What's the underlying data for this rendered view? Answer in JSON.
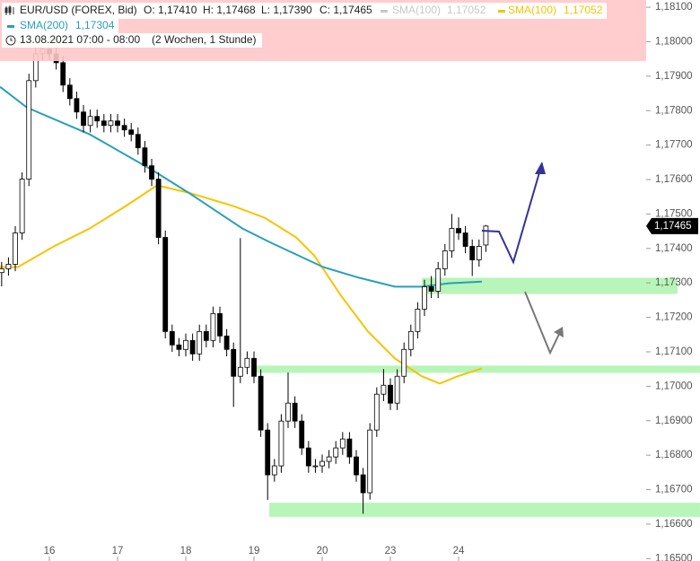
{
  "chart_data": {
    "type": "candlestick",
    "header": {
      "symbol": "EUR/USD (FOREX, Bid)",
      "ohlc": [
        "O: 1,17410",
        "H: 1,17468",
        "L: 1,17390",
        "C: 1,17465"
      ],
      "inactive_indicator": {
        "name": "SMA(100)",
        "value": "1,17052",
        "color": "#c8c8c8"
      },
      "date": "13.08.2021 07:00 - 08:00",
      "range": "(2 Wochen, 1 Stunde)"
    },
    "up_color": "#ffffff",
    "down_color": "#000000",
    "x": [
      -0.7,
      -0.6,
      -0.5,
      -0.4,
      -0.3,
      -0.2,
      -0.1,
      0,
      0.1,
      0.2,
      0.3,
      0.4,
      0.5,
      0.6,
      0.7,
      0.8,
      0.9,
      1,
      1.1,
      1.2,
      1.3,
      1.4,
      1.5,
      1.6,
      1.7,
      1.8,
      1.9,
      2,
      2.1,
      2.2,
      2.3,
      2.4,
      2.5,
      2.6,
      2.7,
      2.8,
      2.9,
      3,
      3.1,
      3.2,
      3.3,
      3.4,
      3.5,
      3.6,
      3.7,
      3.8,
      3.9,
      4,
      4.1,
      4.2,
      4.3,
      4.4,
      4.5,
      4.6,
      4.7,
      4.8,
      4.9,
      5,
      5.1,
      5.2,
      5.3,
      5.4,
      5.5,
      5.6,
      5.7,
      5.8,
      5.9,
      6,
      6.1,
      6.2,
      6.3,
      6.4
    ],
    "open": [
      1.1733,
      1.17341,
      1.17354,
      1.17445,
      1.17601,
      1.17887,
      1.17965,
      1.17978,
      1.17965,
      1.17939,
      1.17874,
      1.17835,
      1.17796,
      1.17757,
      1.17783,
      1.1777,
      1.17757,
      1.1777,
      1.17757,
      1.17744,
      1.17731,
      1.17692,
      1.1764,
      1.17601,
      1.17432,
      1.17159,
      1.1712,
      1.17107,
      1.17133,
      1.17094,
      1.17159,
      1.17133,
      1.17211,
      1.17146,
      1.17107,
      1.17029,
      1.17055,
      1.17081,
      1.17029,
      1.16873,
      1.16743,
      1.16769,
      1.16899,
      1.16951,
      1.16899,
      1.16821,
      1.16769,
      1.16769,
      1.16782,
      1.16795,
      1.16821,
      1.16847,
      1.16795,
      1.16743,
      1.16691,
      1.16873,
      1.16977,
      1.17003,
      1.16951,
      1.17029,
      1.17107,
      1.17159,
      1.17224,
      1.17289,
      1.17276,
      1.17341,
      1.17393,
      1.17458,
      1.17445,
      1.17406,
      1.17367,
      1.1741
    ],
    "high": [
      1.17361,
      1.17374,
      1.17465,
      1.17621,
      1.17907,
      1.17985,
      1.1801,
      1.17998,
      1.17985,
      1.17959,
      1.17894,
      1.17855,
      1.17816,
      1.17803,
      1.17803,
      1.1779,
      1.1779,
      1.1779,
      1.17777,
      1.17764,
      1.17751,
      1.17712,
      1.1766,
      1.17621,
      1.17452,
      1.17179,
      1.1714,
      1.17153,
      1.17153,
      1.17179,
      1.17179,
      1.17231,
      1.17231,
      1.17166,
      1.17127,
      1.1743,
      1.17101,
      1.17101,
      1.17049,
      1.16893,
      1.16789,
      1.16919,
      1.1704,
      1.16971,
      1.16919,
      1.16841,
      1.16789,
      1.16802,
      1.16815,
      1.16841,
      1.16867,
      1.16867,
      1.16815,
      1.16763,
      1.16893,
      1.16997,
      1.1705,
      1.17023,
      1.17049,
      1.17127,
      1.17179,
      1.17244,
      1.17309,
      1.1732,
      1.17361,
      1.17413,
      1.175,
      1.1749,
      1.17465,
      1.17426,
      1.17426,
      1.17468
    ],
    "low": [
      1.1729,
      1.17321,
      1.17334,
      1.17425,
      1.17581,
      1.17867,
      1.17945,
      1.17945,
      1.17919,
      1.17854,
      1.17815,
      1.17776,
      1.17737,
      1.17737,
      1.1775,
      1.17737,
      1.17737,
      1.17737,
      1.17724,
      1.17711,
      1.17672,
      1.1762,
      1.17581,
      1.17412,
      1.17139,
      1.171,
      1.17087,
      1.17087,
      1.17074,
      1.17074,
      1.17113,
      1.17113,
      1.17126,
      1.17087,
      1.1694,
      1.17009,
      1.17035,
      1.17009,
      1.16853,
      1.1667,
      1.16723,
      1.16749,
      1.16879,
      1.16879,
      1.16801,
      1.16749,
      1.16749,
      1.16749,
      1.16762,
      1.16775,
      1.16801,
      1.16775,
      1.16723,
      1.1663,
      1.16671,
      1.16853,
      1.16957,
      1.16931,
      1.16931,
      1.17009,
      1.17087,
      1.17139,
      1.17204,
      1.17256,
      1.17256,
      1.17321,
      1.17373,
      1.17425,
      1.17386,
      1.1732,
      1.17347,
      1.1739
    ],
    "close": [
      1.17341,
      1.17354,
      1.17445,
      1.17601,
      1.17887,
      1.17965,
      1.17978,
      1.17965,
      1.17939,
      1.17874,
      1.17835,
      1.17796,
      1.17757,
      1.17783,
      1.1777,
      1.17757,
      1.1777,
      1.17757,
      1.17744,
      1.17731,
      1.17692,
      1.1764,
      1.17601,
      1.17432,
      1.17159,
      1.1712,
      1.17107,
      1.17133,
      1.17094,
      1.17159,
      1.17133,
      1.17211,
      1.17146,
      1.17107,
      1.17029,
      1.17055,
      1.17081,
      1.17029,
      1.16873,
      1.16743,
      1.16769,
      1.16899,
      1.16951,
      1.16899,
      1.16821,
      1.16769,
      1.16769,
      1.16782,
      1.16795,
      1.16821,
      1.16847,
      1.16795,
      1.16743,
      1.16691,
      1.16873,
      1.16977,
      1.17003,
      1.16951,
      1.17029,
      1.17107,
      1.17159,
      1.17224,
      1.17289,
      1.17276,
      1.17341,
      1.17393,
      1.17458,
      1.17445,
      1.17406,
      1.17367,
      1.17406,
      1.17465
    ],
    "series": [
      {
        "name": "SMA(100)",
        "color": "#f5c400",
        "value_label": "1,17052",
        "x": [
          -0.724,
          -0.461,
          0.066,
          0.592,
          1.118,
          1.579,
          2.039,
          2.697,
          3.158,
          3.618,
          3.882,
          4.276,
          4.671,
          5.066,
          5.461,
          5.724,
          5.987,
          6.342
        ],
        "values": [
          1.17346,
          1.17346,
          1.17406,
          1.17458,
          1.17523,
          1.17583,
          1.17562,
          1.17523,
          1.17489,
          1.17432,
          1.1738,
          1.17263,
          1.17159,
          1.17081,
          1.17029,
          1.17008,
          1.17029,
          1.17052
        ]
      },
      {
        "name": "SMA(200)",
        "color": "#2a9fb8",
        "value_label": "1,17304",
        "x": [
          -0.724,
          -0.329,
          0.592,
          1.513,
          2.039,
          2.829,
          3.224,
          4.013,
          4.539,
          5.066,
          5.461,
          5.855,
          6.342
        ],
        "values": [
          1.17869,
          1.17809,
          1.17731,
          1.17627,
          1.17562,
          1.17458,
          1.17419,
          1.17346,
          1.17315,
          1.17289,
          1.17289,
          1.17299,
          1.17304
        ]
      }
    ],
    "zones": [
      {
        "from": 1.17268,
        "to": 1.17315,
        "x_from": 5.461,
        "x_to": 9.211
      },
      {
        "from": 1.17039,
        "to": 1.1706,
        "x_from": 3.026,
        "x_to": 9.539
      },
      {
        "from": 1.16621,
        "to": 1.16662,
        "x_from": 3.224,
        "x_to": 9.539
      }
    ],
    "zone_color": "#b8f5b8",
    "last_price": {
      "value": 1.17465,
      "label": "1,17465"
    },
    "xlim": [
      -0.724,
      8.75
    ],
    "ylim": [
      1.16493,
      1.18121
    ],
    "xticks": [
      {
        "value": 0,
        "label": "16"
      },
      {
        "value": 1,
        "label": "17"
      },
      {
        "value": 2,
        "label": "18"
      },
      {
        "value": 3,
        "label": "19"
      },
      {
        "value": 4,
        "label": "20"
      },
      {
        "value": 5,
        "label": "23"
      },
      {
        "value": 6,
        "label": "24"
      }
    ],
    "yticks": [
      {
        "value": 1.181,
        "label": "1,18100"
      },
      {
        "value": 1.18,
        "label": "1,18000"
      },
      {
        "value": 1.179,
        "label": "1,17900"
      },
      {
        "value": 1.178,
        "label": "1,17800"
      },
      {
        "value": 1.177,
        "label": "1,17700"
      },
      {
        "value": 1.176,
        "label": "1,17600"
      },
      {
        "value": 1.175,
        "label": "1,17500"
      },
      {
        "value": 1.174,
        "label": "1,17400"
      },
      {
        "value": 1.173,
        "label": "1,17300"
      },
      {
        "value": 1.172,
        "label": "1,17200"
      },
      {
        "value": 1.171,
        "label": "1,17100"
      },
      {
        "value": 1.17,
        "label": "1,17000"
      },
      {
        "value": 1.169,
        "label": "1,16900"
      },
      {
        "value": 1.168,
        "label": "1,16800"
      },
      {
        "value": 1.167,
        "label": "1,16700"
      },
      {
        "value": 1.166,
        "label": "1,16600"
      },
      {
        "value": 1.165,
        "label": "1,16500"
      }
    ]
  }
}
